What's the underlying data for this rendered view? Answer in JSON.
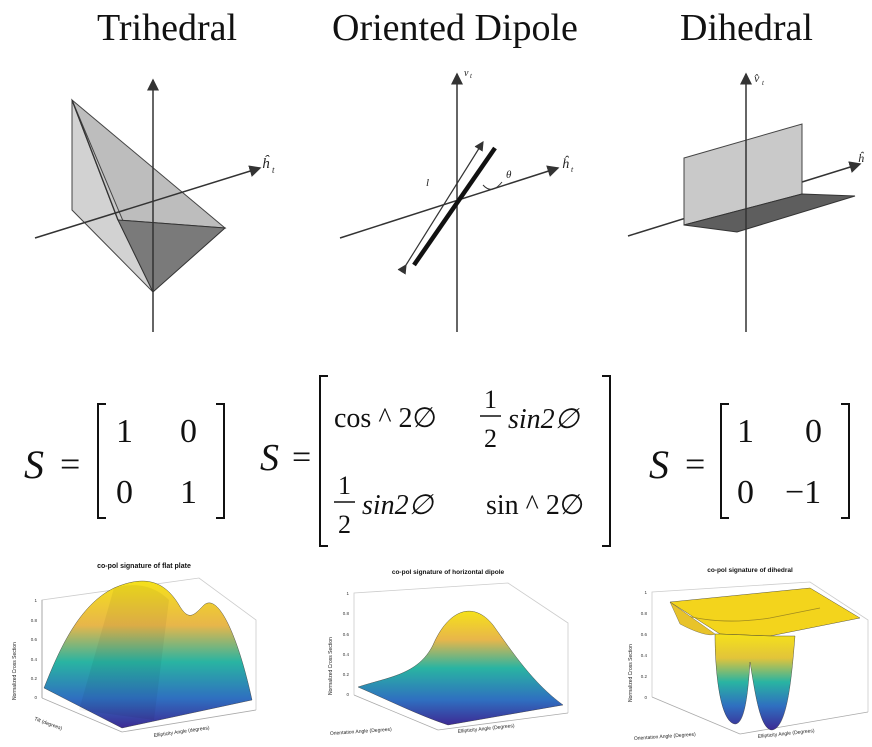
{
  "titles": {
    "trihedral": "Trihedral",
    "dipole": "Oriented Dipole",
    "dihedral": "Dihedral"
  },
  "axis_labels": {
    "trihedral_h": "ĥ",
    "trihedral_h_sub": "t",
    "dipole_h": "ĥ",
    "dipole_h_sub": "t",
    "dipole_v": "v",
    "dipole_v_sub": "t",
    "dipole_length": "l",
    "dipole_angle": "θ",
    "dihedral_v": "v̂",
    "dihedral_v_sub": "t",
    "dihedral_h": "ĥ"
  },
  "matrices": {
    "trihedral": {
      "lhs": "S",
      "eq": "=",
      "cells": [
        "1",
        "0",
        "0",
        "1"
      ]
    },
    "dipole": {
      "lhs": "S",
      "eq": "=",
      "a11": "cos ^ 2∅",
      "a12_num": "1",
      "a12_den": "2",
      "a12_fn": "sin2∅",
      "a21_num": "1",
      "a21_den": "2",
      "a21_fn": "sin2∅",
      "a22": "sin ^ 2∅"
    },
    "dihedral": {
      "lhs": "S",
      "eq": "=",
      "cells": [
        "1",
        "0",
        "0",
        "−1"
      ]
    }
  },
  "plots": [
    {
      "title": "co-pol signature of flat plate",
      "zlabel": "Normalized Cross Section",
      "xlabel": "Tilt (degrees)",
      "ylabel": "Ellipticity Angle (degrees)",
      "zticks": [
        "1",
        "0.8",
        "0.6",
        "0.4",
        "0.2",
        "0"
      ]
    },
    {
      "title": "co-pol signature of horizontal dipole",
      "zlabel": "Normalized Cross Section",
      "xlabel": "Orientation Angle (Degrees)",
      "ylabel": "Ellipticity Angle (Degrees)",
      "zticks": [
        "1",
        "0.8",
        "0.6",
        "0.4",
        "0.2",
        "0"
      ]
    },
    {
      "title": "co-pol signature of dihedral",
      "zlabel": "Normalized Cross Section",
      "xlabel": "Orientation Angle (Degrees)",
      "ylabel": "Ellipticity Angle (Degrees)",
      "zticks": [
        "1",
        "0.8",
        "0.6",
        "0.4",
        "0.2",
        "0"
      ]
    }
  ],
  "colors": {
    "surface_high": "#f5e11a",
    "surface_mid": "#29b4a2",
    "surface_low": "#3d2a94"
  }
}
